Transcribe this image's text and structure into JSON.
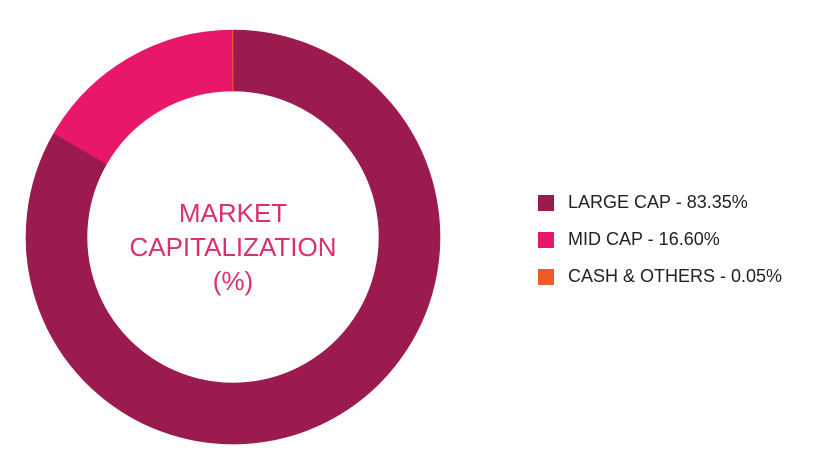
{
  "chart_data": {
    "type": "donut",
    "title": "MARKET CAPITALIZATION (%)",
    "categories": [
      "LARGE CAP - 83.35%",
      "MID CAP - 16.60%",
      "CASH & OTHERS - 0.05%"
    ],
    "values": [
      83.35,
      16.6,
      0.05
    ],
    "colors": [
      "#9b1b4f",
      "#e8176a",
      "#f05a28"
    ]
  }
}
